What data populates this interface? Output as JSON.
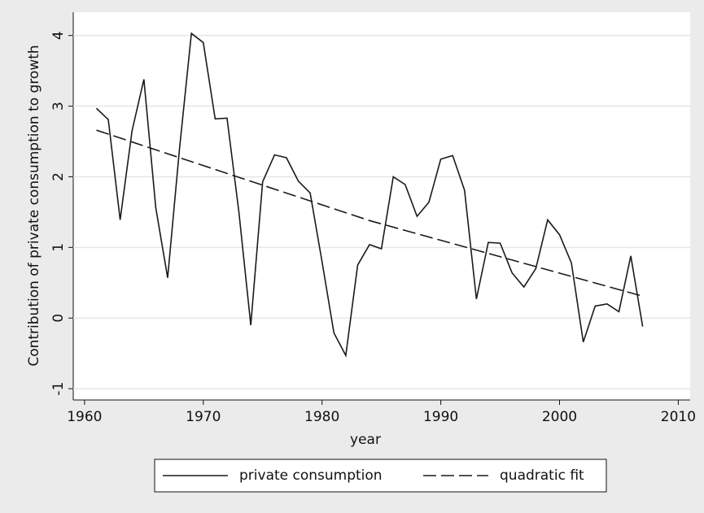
{
  "chart_data": {
    "type": "line",
    "xlabel": "year",
    "ylabel": "Contribution of private consumption to growth",
    "xlim": [
      1959.05,
      2011
    ],
    "xticks": [
      1960,
      1970,
      1980,
      1990,
      2000,
      2010
    ],
    "ylim": [
      -1.16,
      4.33
    ],
    "yticks": [
      -1,
      0,
      1,
      2,
      3,
      4
    ],
    "grid": true,
    "legend": "bottom",
    "series": [
      {
        "name": "private consumption",
        "color": "#1a1a1a",
        "style": "solid",
        "x": [
          1961,
          1962,
          1963,
          1964,
          1965,
          1966,
          1967,
          1968,
          1969,
          1970,
          1971,
          1972,
          1973,
          1974,
          1975,
          1976,
          1977,
          1978,
          1979,
          1980,
          1981,
          1982,
          1983,
          1984,
          1985,
          1986,
          1987,
          1988,
          1989,
          1990,
          1991,
          1992,
          1993,
          1994,
          1995,
          1996,
          1997,
          1998,
          1999,
          2000,
          2001,
          2002,
          2003,
          2004,
          2005,
          2006,
          2007
        ],
        "values": [
          2.97,
          2.81,
          1.39,
          2.65,
          3.38,
          1.56,
          0.57,
          2.4,
          4.03,
          3.9,
          2.82,
          2.83,
          1.5,
          -0.1,
          1.93,
          2.31,
          2.27,
          1.94,
          1.77,
          0.8,
          -0.21,
          -0.53,
          0.75,
          1.04,
          0.98,
          2.0,
          1.89,
          1.44,
          1.64,
          2.25,
          2.3,
          1.81,
          0.27,
          1.07,
          1.06,
          0.64,
          0.44,
          0.7,
          1.39,
          1.18,
          0.78,
          -0.34,
          0.17,
          0.2,
          0.09,
          0.88,
          -0.12
        ]
      },
      {
        "name": "quadratic fit",
        "color": "#1a1a1a",
        "style": "dashed",
        "x": [
          1961,
          1984,
          2007
        ],
        "values": [
          2.66,
          1.38,
          0.31
        ]
      }
    ]
  }
}
